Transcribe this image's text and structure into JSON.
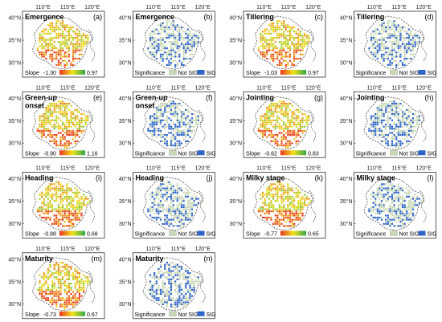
{
  "panels": [
    {
      "title": "Emergence",
      "letter": "(a)",
      "kind": "slope",
      "min": "-1.30",
      "max": "0.97"
    },
    {
      "title": "Emergence",
      "letter": "(b)",
      "kind": "sig"
    },
    {
      "title": "Tillering",
      "letter": "(c)",
      "kind": "slope",
      "min": "-1.03",
      "max": "0.97"
    },
    {
      "title": "Tillering",
      "letter": "(d)",
      "kind": "sig"
    },
    {
      "title": "Green-up\nonset",
      "letter": "(e)",
      "kind": "slope",
      "min": "-0.90",
      "max": "1.16"
    },
    {
      "title": "Green-up\nonset",
      "letter": "(f)",
      "kind": "sig"
    },
    {
      "title": "Jointing",
      "letter": "(g)",
      "kind": "slope",
      "min": "-0.62",
      "max": "0.83"
    },
    {
      "title": "Jointing",
      "letter": "(h)",
      "kind": "sig"
    },
    {
      "title": "Heading",
      "letter": "(i)",
      "kind": "slope",
      "min": "-0.88",
      "max": "0.68"
    },
    {
      "title": "Heading",
      "letter": "(j)",
      "kind": "sig"
    },
    {
      "title": "Milky stage",
      "letter": "(k)",
      "kind": "slope",
      "min": "-0.77",
      "max": "0.65"
    },
    {
      "title": "Milky stage",
      "letter": "(l)",
      "kind": "sig"
    },
    {
      "title": "Maturity",
      "letter": "(m)",
      "kind": "slope",
      "min": "-0.73",
      "max": "0.67"
    },
    {
      "title": "Maturity",
      "letter": "(n)",
      "kind": "sig"
    }
  ],
  "axis": {
    "lon_ticks": [
      "110°E",
      "115°E",
      "120°E"
    ],
    "lat_ticks": [
      "40°N",
      "35°N",
      "30°N"
    ]
  },
  "legend": {
    "slope_label": "Slope",
    "significance_label": "Significance",
    "not_sig": "Not SIG",
    "sig": "SIG"
  },
  "colors": {
    "slope_low": "#e8331c",
    "slope_mid": "#f2e21a",
    "slope_high": "#2fa84a",
    "not_sig": "#c8d8b4",
    "sig": "#2e63c8"
  }
}
